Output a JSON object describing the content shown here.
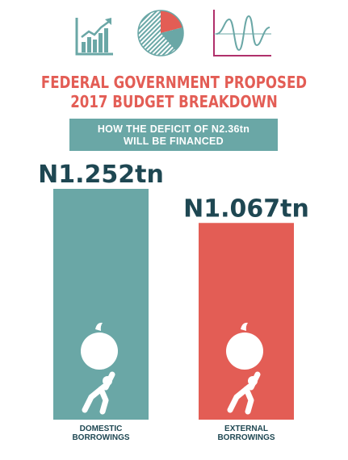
{
  "title": {
    "line1": "FEDERAL GOVERNMENT PROPOSED",
    "line2": "2017 BUDGET BREAKDOWN"
  },
  "subtitle": {
    "line1": "HOW THE DEFICIT OF N2.36tn",
    "line2": "WILL BE FINANCED"
  },
  "icons": [
    "bar-growth-icon",
    "pie-chart-icon",
    "line-wave-icon"
  ],
  "colors": {
    "teal": "#6AA7A6",
    "red": "#E35D55",
    "dark": "#1E4752",
    "magenta": "#B0306B"
  },
  "chart_data": {
    "type": "bar",
    "categories": [
      [
        "DOMESTIC",
        "BORROWINGS"
      ],
      [
        "EXTERNAL",
        "BORROWINGS"
      ]
    ],
    "values": [
      1.252,
      1.067
    ],
    "value_labels": [
      "N1.252tn",
      "N1.067tn"
    ],
    "colors": [
      "#6AA7A6",
      "#E35D55"
    ],
    "unit": "tn"
  }
}
